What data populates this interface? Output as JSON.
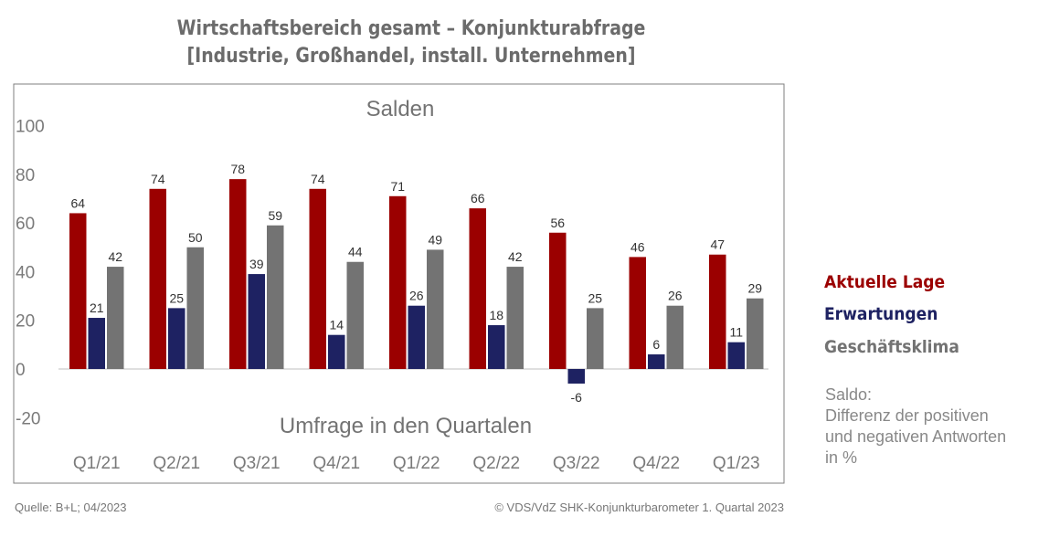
{
  "header": {
    "title_line1": "Wirtschaftsbereich gesamt – Konjunkturabfrage",
    "title_line2": "[Industrie, Großhandel, install. Unternehmen]"
  },
  "chart_data": {
    "type": "bar",
    "title": "Salden",
    "xlabel": "Umfrage in den Quartalen",
    "ylabel": "",
    "ylim": [
      -20,
      100
    ],
    "yticks": [
      100,
      80,
      60,
      40,
      20,
      0,
      -20
    ],
    "grid": false,
    "legend_position": "right",
    "categories": [
      "Q1/21",
      "Q2/21",
      "Q3/21",
      "Q4/21",
      "Q1/22",
      "Q2/22",
      "Q3/22",
      "Q4/22",
      "Q1/23"
    ],
    "series": [
      {
        "name": "Aktuelle Lage",
        "color": "#9b0000",
        "values": [
          64,
          74,
          78,
          74,
          71,
          66,
          56,
          46,
          47
        ]
      },
      {
        "name": "Erwartungen",
        "color": "#1e2262",
        "values": [
          21,
          25,
          39,
          14,
          26,
          18,
          -6,
          6,
          11
        ]
      },
      {
        "name": "Geschäftsklima",
        "color": "#737373",
        "values": [
          42,
          50,
          59,
          44,
          49,
          42,
          25,
          26,
          29
        ]
      }
    ]
  },
  "note": {
    "line1": "Saldo:",
    "line2": "Differenz der positiven",
    "line3": "und negativen Antworten",
    "line4": "in %"
  },
  "footer": {
    "source": "Quelle: B+L; 04/2023",
    "copyright": "© VDS/VdZ SHK-Konjunkturbarometer 1. Quartal 2023"
  }
}
